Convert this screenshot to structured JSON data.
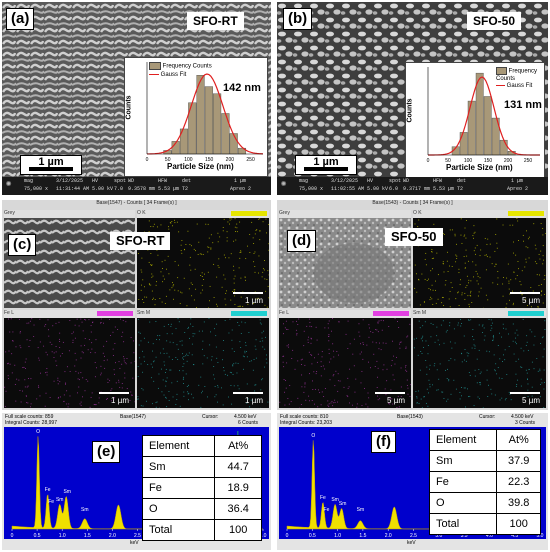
{
  "panels": {
    "a": {
      "label": "(a)",
      "sample": "SFO-RT",
      "scale": "1 µm",
      "hist": {
        "legend_title": "Frequency Counts",
        "legend_fit": "Gauss Fit",
        "peak": "142 nm",
        "xlabel": "Particle Size (nm)",
        "ylabel": "Counts",
        "xticks": [
          "0",
          "50",
          "100",
          "150",
          "200",
          "250"
        ]
      },
      "info": {
        "mag": "mag",
        "date": "3/12/2025",
        "hv": "HV",
        "spot": "spot",
        "wd": "WD",
        "hfw": "HFW",
        "det": "det",
        "mag_v": "75,000 x",
        "time_v": "11:31:44 AM",
        "hv_v": "5.00 kV",
        "spot_v": "7.0",
        "wd_v": "9.3578 mm",
        "hfw_v": "5.53 µm",
        "det_v": "T2",
        "apreo": "Apreo 2",
        "bar": "1 µm"
      }
    },
    "b": {
      "label": "(b)",
      "sample": "SFO-50",
      "scale": "1 µm",
      "hist": {
        "legend_title": "Frequency Counts",
        "legend_fit": "Gauss Fit",
        "peak": "131 nm",
        "xlabel": "Particle Size (nm)",
        "ylabel": "Counts",
        "xticks": [
          "0",
          "50",
          "100",
          "150",
          "200",
          "250"
        ]
      },
      "info": {
        "mag": "mag",
        "date": "3/12/2025",
        "hv": "HV",
        "spot": "spot",
        "wd": "WD",
        "hfw": "HFW",
        "det": "det",
        "mag_v": "75,000 x",
        "time_v": "11:02:55 AM",
        "hv_v": "5.00 kV",
        "spot_v": "6.0",
        "wd_v": "9.3717 mm",
        "hfw_v": "5.53 µm",
        "det_v": "T2",
        "apreo": "Apreo 2",
        "bar": "1 µm"
      }
    },
    "c": {
      "label": "(c)",
      "sample": "SFO-RT",
      "header": "Base(1547) - Counts [ 34 Frame(s) ]",
      "maps": [
        {
          "tag": "Grey",
          "scale": ""
        },
        {
          "tag": "O K",
          "scale": "1 µm"
        },
        {
          "tag": "Fe L",
          "scale": "1 µm"
        },
        {
          "tag": "Sm M",
          "scale": "1 µm"
        }
      ]
    },
    "d": {
      "label": "(d)",
      "sample": "SFO-50",
      "header": "Base(1543) - Counts [ 34 Frame(s) ]",
      "maps": [
        {
          "tag": "Grey",
          "scale": ""
        },
        {
          "tag": "O K",
          "scale": "5 µm"
        },
        {
          "tag": "Fe L",
          "scale": "5 µm"
        },
        {
          "tag": "Sm M",
          "scale": "5 µm"
        }
      ]
    },
    "e": {
      "label": "(e)",
      "fullscale": "Full scale counts: 859",
      "integral": "Integral Counts: 28,997",
      "base": "Base(1547)",
      "cursor": "Cursor:",
      "cursor_v": "4.500 keV",
      "counts": "6 Counts",
      "xunit": "keV",
      "peaks": {
        "o": "O",
        "fe": "Fe",
        "sm": "Sm"
      },
      "xticks": [
        "0",
        "0.5",
        "1.0",
        "1.5",
        "2.0",
        "2.5",
        "3.0",
        "3.5",
        "4.0",
        "4.5",
        "5.0"
      ],
      "table": {
        "headers": [
          "Element",
          "At%"
        ],
        "rows": [
          [
            "Sm",
            "44.7"
          ],
          [
            "Fe",
            "18.9"
          ],
          [
            "O",
            "36.4"
          ],
          [
            "Total",
            "100"
          ]
        ]
      }
    },
    "f": {
      "label": "(f)",
      "fullscale": "Full scale counts: 810",
      "integral": "Integral Counts: 23,203",
      "base": "Base(1543)",
      "cursor": "Cursor:",
      "cursor_v": "4.500 keV",
      "counts": "3 Counts",
      "xunit": "keV",
      "peaks": {
        "o": "O",
        "fe": "Fe",
        "sm": "Sm"
      },
      "xticks": [
        "0",
        "0.5",
        "1.0",
        "1.5",
        "2.0",
        "2.5",
        "3.0",
        "3.5",
        "4.0",
        "4.5",
        "5.0"
      ],
      "table": {
        "headers": [
          "Element",
          "At%"
        ],
        "rows": [
          [
            "Sm",
            "37.9"
          ],
          [
            "Fe",
            "22.3"
          ],
          [
            "O",
            "39.8"
          ],
          [
            "Total",
            "100"
          ]
        ]
      }
    }
  },
  "colors": {
    "map_o": "#d8d800",
    "map_fe": "#e040e0",
    "map_sm": "#20c0c0",
    "eds_fill": "#f0e000",
    "eds_bg": "#0000cc",
    "fit": "#e02020"
  }
}
